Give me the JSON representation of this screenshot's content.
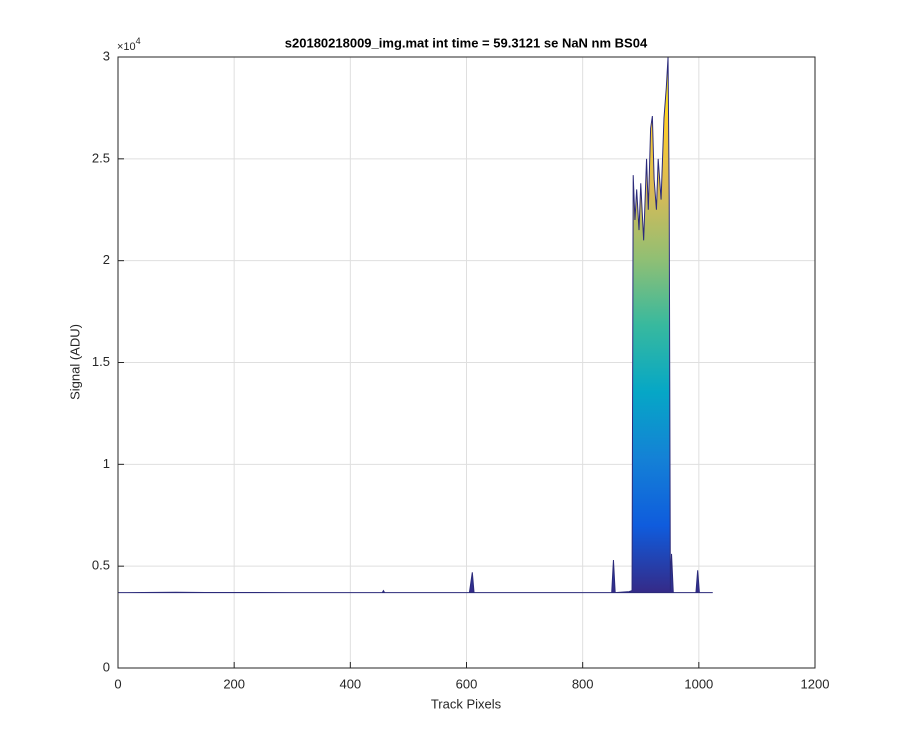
{
  "chart_data": {
    "type": "area",
    "title": "s20180218009_img.mat int time = 59.3121 se  NaN nm BS04",
    "x_label": "Track Pixels",
    "y_label": "Signal (ADU)",
    "y_multiplier_base": "×10",
    "y_multiplier_exponent": "4",
    "x": [
      0,
      100,
      150,
      300,
      455,
      457,
      459,
      605,
      610,
      613,
      850,
      853,
      856,
      880,
      885,
      887,
      890,
      893,
      897,
      900,
      905,
      910,
      913,
      917,
      920,
      923,
      927,
      930,
      935,
      940,
      944,
      947,
      949,
      951,
      953,
      956,
      995,
      998,
      1001,
      1024
    ],
    "values": [
      3700,
      3720,
      3710,
      3700,
      3700,
      3800,
      3700,
      3700,
      4700,
      3700,
      3700,
      5300,
      3700,
      3750,
      3800,
      24200,
      22000,
      23500,
      21500,
      23800,
      21000,
      25000,
      22500,
      26500,
      27100,
      24000,
      22500,
      25000,
      23000,
      27000,
      28500,
      30000,
      23000,
      3800,
      5600,
      3700,
      3700,
      4800,
      3700,
      3700
    ],
    "colors": [
      "#352a87",
      "#0f5cdd",
      "#1481d6",
      "#06a7c6",
      "#38b99e",
      "#92bf73",
      "#d9ba56",
      "#fcce2e",
      "#f9fb0e"
    ],
    "line_color": "#2b2a7a",
    "xlim": [
      0,
      1200
    ],
    "xticks": [
      0,
      200,
      400,
      600,
      800,
      1000,
      1200
    ],
    "ylim": [
      0,
      30000
    ],
    "yticks": [
      {
        "value": 0,
        "label": "0"
      },
      {
        "value": 5000,
        "label": "0.5"
      },
      {
        "value": 10000,
        "label": "1"
      },
      {
        "value": 15000,
        "label": "1.5"
      },
      {
        "value": 20000,
        "label": "2"
      },
      {
        "value": 25000,
        "label": "2.5"
      },
      {
        "value": 30000,
        "label": "3"
      }
    ],
    "grid": true
  }
}
